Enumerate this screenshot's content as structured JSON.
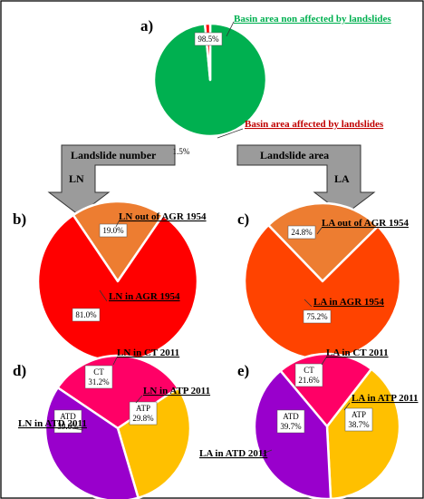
{
  "colors": {
    "green": "#00b050",
    "red": "#ff0000",
    "orange": "#ed7d31",
    "orange_red": "#ff4300",
    "magenta": "#ff0066",
    "yellow": "#ffc000",
    "purple": "#9900cc",
    "green_text": "#00b050",
    "red_text": "#c00000"
  },
  "arrows": {
    "left_box": "Landslide number",
    "right_box": "Landslide area",
    "left_code": "LN",
    "right_code": "LA"
  },
  "chart_data": [
    {
      "type": "pie",
      "panel": "a)",
      "slices": [
        {
          "label": "Basin area non affected by landslides",
          "value": 98.5,
          "pct_label": "98.5%",
          "color": "#00b050"
        },
        {
          "label": "Basin area affected by landslides",
          "value": 1.5,
          "pct_label": "1.5%",
          "color": "#ff0000"
        }
      ]
    },
    {
      "type": "pie",
      "panel": "b)",
      "slices": [
        {
          "label": "LN out of AGR 1954",
          "value": 19.0,
          "pct_label": "19.0%",
          "color": "#ed7d31"
        },
        {
          "label": "LN in AGR 1954",
          "value": 81.0,
          "pct_label": "81.0%",
          "color": "#ff0000"
        }
      ]
    },
    {
      "type": "pie",
      "panel": "c)",
      "slices": [
        {
          "label": "LA out of AGR 1954",
          "value": 24.8,
          "pct_label": "24.8%",
          "color": "#ed7d31"
        },
        {
          "label": "LA in AGR 1954",
          "value": 75.2,
          "pct_label": "75.2%",
          "color": "#ff4300"
        }
      ]
    },
    {
      "type": "pie",
      "panel": "d)",
      "slices": [
        {
          "label": "LN in CT 2011",
          "code": "CT",
          "value": 31.2,
          "pct_label": "31.2%",
          "color": "#ff0066"
        },
        {
          "label": "LN in ATP 2011",
          "code": "ATP",
          "value": 29.8,
          "pct_label": "29.8%",
          "color": "#ffc000"
        },
        {
          "label": "LN in ATD 2011",
          "code": "ATD",
          "value": 39.0,
          "pct_label": "39.0%",
          "color": "#9900cc"
        }
      ]
    },
    {
      "type": "pie",
      "panel": "e)",
      "slices": [
        {
          "label": "LA in CT 2011",
          "code": "CT",
          "value": 21.6,
          "pct_label": "21.6%",
          "color": "#ff0066"
        },
        {
          "label": "LA in ATP 2011",
          "code": "ATP",
          "value": 38.7,
          "pct_label": "38.7%",
          "color": "#ffc000"
        },
        {
          "label": "LA in ATD 2011",
          "code": "ATD",
          "value": 39.7,
          "pct_label": "39.7%",
          "color": "#9900cc"
        }
      ]
    }
  ]
}
